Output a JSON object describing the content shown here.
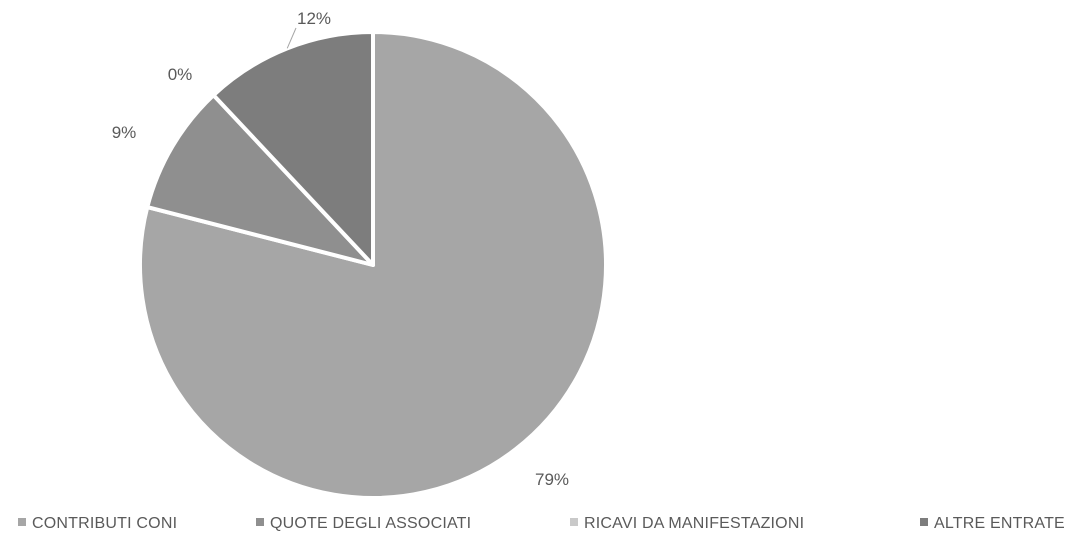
{
  "chart_data": {
    "type": "pie",
    "categories": [
      "CONTRIBUTI CONI",
      "QUOTE DEGLI ASSOCIATI",
      "RICAVI DA MANIFESTAZIONI",
      "ALTRE ENTRATE"
    ],
    "values": [
      79,
      9,
      0,
      12
    ],
    "data_labels": [
      "79%",
      "9%",
      "0%",
      "12%"
    ],
    "colors": [
      "#a6a6a6",
      "#8f8f8f",
      "#c9c9c9",
      "#7d7d7d"
    ],
    "title": "",
    "legend_position": "bottom",
    "start_angle": "12-o'clock",
    "direction": "clockwise"
  }
}
